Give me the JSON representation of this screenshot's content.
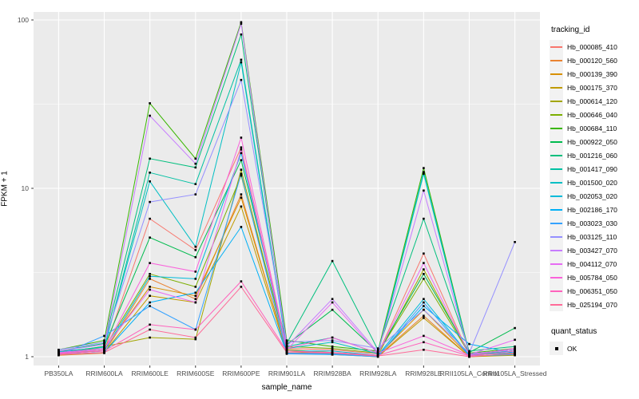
{
  "chart_data": {
    "type": "line",
    "title": "",
    "xlabel": "sample_name",
    "ylabel": "FPKM + 1",
    "y_scale": "log10",
    "y_ticks": [
      "1",
      "10",
      "100"
    ],
    "y_tick_values": [
      1,
      10,
      100
    ],
    "y_minor_values": [
      3.162,
      31.62
    ],
    "ylim": [
      0.9,
      110
    ],
    "grid": "major-and-minor, white on gray panel",
    "legend_position": "right",
    "panel_color": "#EBEBEB",
    "grid_color": "#FFFFFF",
    "tick_text_color": "#4D4D4D",
    "point_color": "#000000",
    "categories": [
      "PB350LA",
      "RRIM600LA",
      "RRIM600LE",
      "RRIM600SE",
      "RRIM600PE",
      "RRIM901LA",
      "RRIM928BA",
      "RRIM928LA",
      "RRIM928LE",
      "RRII105LA_Control",
      "RRII105LA_Stressed"
    ],
    "legend_title": "tracking_id",
    "legend2_title": "quant_status",
    "legend2_items": [
      "OK"
    ],
    "series": [
      {
        "name": "Hb_000085_410",
        "color": "#F8766D",
        "values": [
          1.05,
          1.08,
          6.6,
          4.3,
          17.5,
          1.12,
          1.1,
          1.04,
          4.1,
          1.02,
          1.08
        ]
      },
      {
        "name": "Hb_000120_560",
        "color": "#EA8331",
        "values": [
          1.02,
          1.05,
          2.9,
          2.2,
          9.2,
          1.06,
          1.05,
          1.01,
          1.75,
          1.0,
          1.04
        ]
      },
      {
        "name": "Hb_000139_390",
        "color": "#D89000",
        "values": [
          1.04,
          1.1,
          2.6,
          2.3,
          8.8,
          1.08,
          1.04,
          1.02,
          1.9,
          1.01,
          1.03
        ]
      },
      {
        "name": "Hb_000175_370",
        "color": "#C09B00",
        "values": [
          1.03,
          1.06,
          2.3,
          2.1,
          7.8,
          1.05,
          1.03,
          1.0,
          1.7,
          1.0,
          1.02
        ]
      },
      {
        "name": "Hb_000614_120",
        "color": "#A3A500",
        "values": [
          1.05,
          1.15,
          1.3,
          1.27,
          12.9,
          1.1,
          1.06,
          1.02,
          3.3,
          1.03,
          1.05
        ]
      },
      {
        "name": "Hb_000646_040",
        "color": "#7CAE00",
        "values": [
          1.08,
          1.12,
          3.1,
          2.6,
          11.9,
          1.15,
          1.12,
          1.05,
          2.9,
          1.04,
          1.1
        ]
      },
      {
        "name": "Hb_000684_110",
        "color": "#39B600",
        "values": [
          1.1,
          1.25,
          32,
          15,
          97,
          1.25,
          1.15,
          1.08,
          13.2,
          1.05,
          1.12
        ]
      },
      {
        "name": "Hb_000922_050",
        "color": "#00BB4E",
        "values": [
          1.06,
          1.15,
          5.1,
          3.9,
          14.7,
          1.18,
          1.9,
          1.06,
          3.1,
          1.06,
          1.48
        ]
      },
      {
        "name": "Hb_001216_060",
        "color": "#00BF7D",
        "values": [
          1.08,
          1.2,
          15,
          13.3,
          82,
          1.2,
          3.7,
          1.1,
          6.6,
          1.08,
          1.15
        ]
      },
      {
        "name": "Hb_001417_090",
        "color": "#00C1A3",
        "values": [
          1.05,
          1.12,
          12.4,
          10.6,
          58,
          1.15,
          1.3,
          1.05,
          12.5,
          1.04,
          1.1
        ]
      },
      {
        "name": "Hb_001500_020",
        "color": "#00BFC4",
        "values": [
          1.07,
          1.14,
          11.0,
          4.5,
          56,
          1.12,
          1.22,
          1.04,
          12.2,
          1.03,
          1.08
        ]
      },
      {
        "name": "Hb_002053_020",
        "color": "#00BBDA",
        "values": [
          1.04,
          1.08,
          3.0,
          2.9,
          16.2,
          1.08,
          1.08,
          1.02,
          2.2,
          1.02,
          1.06
        ]
      },
      {
        "name": "Hb_002186_170",
        "color": "#00B0F6",
        "values": [
          1.03,
          1.06,
          2.1,
          2.4,
          5.9,
          1.05,
          1.04,
          1.01,
          2.0,
          1.19,
          1.05
        ]
      },
      {
        "name": "Hb_003023_030",
        "color": "#35A2FF",
        "values": [
          1.02,
          1.33,
          2.0,
          1.45,
          12.2,
          1.04,
          1.03,
          1.0,
          2.1,
          1.01,
          1.03
        ]
      },
      {
        "name": "Hb_003125_110",
        "color": "#9590FF",
        "values": [
          1.1,
          1.22,
          8.3,
          9.2,
          44,
          1.22,
          1.25,
          1.12,
          1.9,
          1.05,
          4.8
        ]
      },
      {
        "name": "Hb_003427_070",
        "color": "#C77CFF",
        "values": [
          1.08,
          1.18,
          27,
          14,
          95,
          1.15,
          2.2,
          1.06,
          9.7,
          1.04,
          1.1
        ]
      },
      {
        "name": "Hb_004112_070",
        "color": "#E76BF3",
        "values": [
          1.06,
          1.12,
          2.5,
          2.1,
          17.0,
          1.1,
          2.1,
          1.04,
          3.6,
          1.03,
          1.26
        ]
      },
      {
        "name": "Hb_005784_050",
        "color": "#FA62DB",
        "values": [
          1.05,
          1.1,
          3.6,
          3.2,
          20,
          1.12,
          1.3,
          1.05,
          1.33,
          1.02,
          1.12
        ]
      },
      {
        "name": "Hb_006351_050",
        "color": "#FF62BC",
        "values": [
          1.04,
          1.08,
          1.55,
          1.45,
          2.8,
          1.08,
          1.06,
          1.02,
          1.22,
          1.01,
          1.08
        ]
      },
      {
        "name": "Hb_025194_070",
        "color": "#FF6A98",
        "values": [
          1.03,
          1.06,
          1.45,
          1.3,
          2.6,
          1.06,
          1.05,
          1.01,
          1.1,
          1.0,
          1.05
        ]
      }
    ]
  }
}
